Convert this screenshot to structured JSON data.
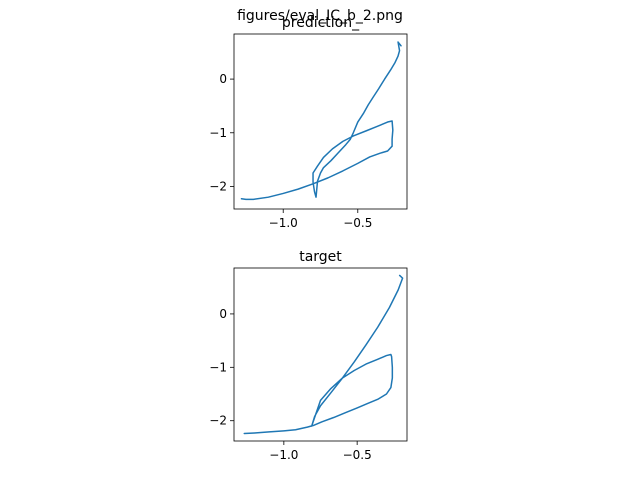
{
  "figure": {
    "suptitle": "figures/eval_IC_b_2.png"
  },
  "chart_data": [
    {
      "type": "line",
      "title": "prediction_",
      "xlabel": "",
      "ylabel": "",
      "xlim": [
        -1.33,
        -0.17
      ],
      "ylim": [
        -2.42,
        0.84
      ],
      "xticks": [
        -1.0,
        -0.5
      ],
      "xtick_labels": [
        "−1.0",
        "−0.5"
      ],
      "yticks": [
        0,
        -1,
        -2
      ],
      "ytick_labels": [
        "0",
        "−1",
        "−2"
      ],
      "grid": false,
      "legend": "none",
      "series": [
        {
          "color": "#1f77b4",
          "x": [
            -1.28,
            -1.25,
            -1.2,
            -1.1,
            -1.0,
            -0.9,
            -0.8,
            -0.7,
            -0.6,
            -0.5,
            -0.42,
            -0.35,
            -0.3,
            -0.27,
            -0.27,
            -0.265,
            -0.27,
            -0.3,
            -0.36,
            -0.44,
            -0.53,
            -0.6,
            -0.67,
            -0.73,
            -0.77,
            -0.8,
            -0.8,
            -0.79,
            -0.78,
            -0.77,
            -0.75,
            -0.73,
            -0.68,
            -0.63,
            -0.58,
            -0.55,
            -0.53,
            -0.5,
            -0.46,
            -0.43,
            -0.4,
            -0.36,
            -0.32,
            -0.28,
            -0.25,
            -0.23,
            -0.22,
            -0.23,
            -0.21
          ],
          "y": [
            -2.23,
            -2.24,
            -2.24,
            -2.2,
            -2.13,
            -2.05,
            -1.95,
            -1.84,
            -1.71,
            -1.57,
            -1.45,
            -1.38,
            -1.34,
            -1.25,
            -1.12,
            -0.95,
            -0.78,
            -0.8,
            -0.87,
            -0.96,
            -1.06,
            -1.16,
            -1.3,
            -1.46,
            -1.62,
            -1.75,
            -1.92,
            -2.1,
            -2.2,
            -1.9,
            -1.75,
            -1.65,
            -1.52,
            -1.37,
            -1.22,
            -1.12,
            -1.0,
            -0.8,
            -0.63,
            -0.48,
            -0.35,
            -0.18,
            0.0,
            0.17,
            0.31,
            0.43,
            0.53,
            0.69,
            0.62
          ]
        }
      ]
    },
    {
      "type": "line",
      "title": "target",
      "xlabel": "",
      "ylabel": "",
      "xlim": [
        -1.34,
        -0.16
      ],
      "ylim": [
        -2.38,
        0.86
      ],
      "xticks": [
        -1.0,
        -0.5
      ],
      "xtick_labels": [
        "−1.0",
        "−0.5"
      ],
      "yticks": [
        0,
        -1,
        -2
      ],
      "ytick_labels": [
        "0",
        "−1",
        "−2"
      ],
      "grid": false,
      "legend": "none",
      "series": [
        {
          "color": "#1f77b4",
          "x": [
            -1.27,
            -1.2,
            -1.1,
            -1.0,
            -0.92,
            -0.84,
            -0.8,
            -0.74,
            -0.66,
            -0.58,
            -0.5,
            -0.43,
            -0.36,
            -0.3,
            -0.27,
            -0.26,
            -0.26,
            -0.265,
            -0.27,
            -0.3,
            -0.36,
            -0.44,
            -0.52,
            -0.6,
            -0.68,
            -0.75,
            -0.81,
            -0.79,
            -0.75,
            -0.68,
            -0.6,
            -0.52,
            -0.44,
            -0.36,
            -0.28,
            -0.22,
            -0.19,
            -0.21
          ],
          "y": [
            -2.24,
            -2.23,
            -2.21,
            -2.19,
            -2.17,
            -2.12,
            -2.09,
            -2.02,
            -1.94,
            -1.85,
            -1.76,
            -1.68,
            -1.6,
            -1.5,
            -1.38,
            -1.2,
            -1.0,
            -0.8,
            -0.76,
            -0.78,
            -0.85,
            -0.94,
            -1.06,
            -1.2,
            -1.4,
            -1.62,
            -2.1,
            -1.92,
            -1.72,
            -1.48,
            -1.2,
            -0.9,
            -0.58,
            -0.25,
            0.12,
            0.45,
            0.67,
            0.72
          ]
        }
      ]
    }
  ]
}
